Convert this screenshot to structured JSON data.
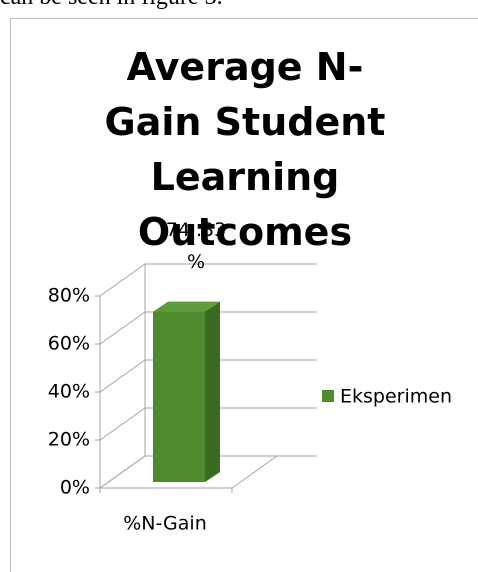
{
  "caption_above": "can be seen in figure 3.",
  "chart_data": {
    "type": "bar3d",
    "title": "Average N-Gain Student Learning Outcomes",
    "categories": [
      "%N-Gain"
    ],
    "series": [
      {
        "name": "Eksperimen",
        "color": "#4f8a2f",
        "values": [
          74.33
        ]
      }
    ],
    "value_labels": [
      "74 .33 %"
    ],
    "ylim": [
      0,
      80
    ],
    "yticks": [
      {
        "value": 0,
        "label": "0%"
      },
      {
        "value": 20,
        "label": "20%"
      },
      {
        "value": 40,
        "label": "40%"
      },
      {
        "value": 60,
        "label": "60%"
      },
      {
        "value": 80,
        "label": "80%"
      }
    ],
    "grid": true,
    "legend": "right"
  }
}
